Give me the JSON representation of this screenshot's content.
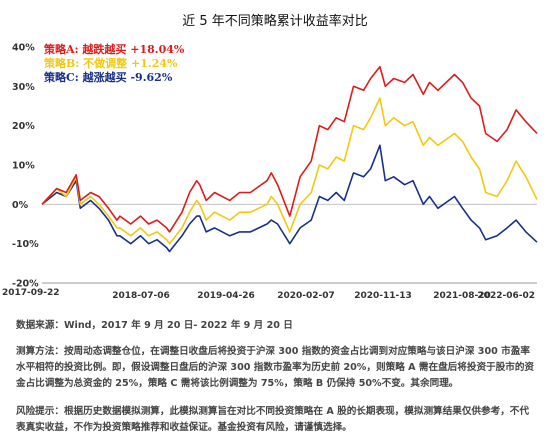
{
  "chart_data": {
    "type": "line",
    "title": "近 5 年不同策略累计收益率对比",
    "ylim": [
      -20,
      40
    ],
    "yticks": [
      -20,
      -10,
      0,
      10,
      20,
      30,
      40
    ],
    "ytick_labels": [
      "-20%",
      "-10%",
      "0%",
      "10%",
      "20%",
      "30%",
      "40%"
    ],
    "xlim": [
      "2017-09-22",
      "2022-09-20"
    ],
    "xtick_labels": [
      "2017-09-22",
      "2018-07-06",
      "2019-04-26",
      "2020-02-07",
      "2020-11-13",
      "2021-08-20",
      "2022-06-02"
    ],
    "grid": false,
    "legend_position": "top-left",
    "series": [
      {
        "name": "策略A: 越跌越买 +18.04%",
        "color": "#dd1c1c",
        "x": [
          "2017-09-22",
          "2017-11-15",
          "2017-12-20",
          "2018-01-26",
          "2018-02-10",
          "2018-03-20",
          "2018-04-20",
          "2018-05-25",
          "2018-06-25",
          "2018-07-06",
          "2018-08-15",
          "2018-09-20",
          "2018-10-20",
          "2018-11-20",
          "2018-12-25",
          "2019-01-05",
          "2019-02-20",
          "2019-03-20",
          "2019-04-15",
          "2019-04-26",
          "2019-05-20",
          "2019-06-20",
          "2019-08-15",
          "2019-09-20",
          "2019-10-30",
          "2019-12-30",
          "2020-01-15",
          "2020-02-07",
          "2020-03-23",
          "2020-04-30",
          "2020-06-10",
          "2020-07-10",
          "2020-08-10",
          "2020-09-10",
          "2020-10-10",
          "2020-11-13",
          "2020-12-20",
          "2021-01-15",
          "2021-02-18",
          "2021-03-10",
          "2021-04-10",
          "2021-05-20",
          "2021-06-20",
          "2021-07-28",
          "2021-08-20",
          "2021-09-20",
          "2021-11-20",
          "2021-12-20",
          "2022-01-20",
          "2022-02-20",
          "2022-03-15",
          "2022-04-26",
          "2022-06-02",
          "2022-07-05",
          "2022-08-10",
          "2022-09-20"
        ],
        "y": [
          0,
          4,
          3,
          7.5,
          1,
          3,
          2,
          -1,
          -4,
          -3,
          -5,
          -3,
          -5,
          -4,
          -6,
          -7,
          -2,
          3,
          6,
          5,
          1,
          3,
          1,
          3,
          3,
          6,
          8,
          5,
          -3,
          7,
          11,
          20,
          19,
          22,
          21,
          30,
          29,
          32,
          35,
          30,
          32,
          31,
          33,
          28,
          31,
          29,
          33,
          31,
          27,
          25,
          18,
          16,
          19,
          24,
          21,
          18.04
        ]
      },
      {
        "name": "策略B: 不做调整 +1.24%",
        "color": "#f2c811",
        "x": [
          "2017-09-22",
          "2017-11-15",
          "2017-12-20",
          "2018-01-26",
          "2018-02-10",
          "2018-03-20",
          "2018-04-20",
          "2018-05-25",
          "2018-06-25",
          "2018-07-06",
          "2018-08-15",
          "2018-09-20",
          "2018-10-20",
          "2018-11-20",
          "2018-12-25",
          "2019-01-05",
          "2019-02-20",
          "2019-03-20",
          "2019-04-15",
          "2019-04-26",
          "2019-05-20",
          "2019-06-20",
          "2019-08-15",
          "2019-09-20",
          "2019-10-30",
          "2019-12-30",
          "2020-01-15",
          "2020-02-07",
          "2020-03-23",
          "2020-04-30",
          "2020-06-10",
          "2020-07-10",
          "2020-08-10",
          "2020-09-10",
          "2020-10-10",
          "2020-11-13",
          "2020-12-20",
          "2021-01-15",
          "2021-02-18",
          "2021-03-10",
          "2021-04-10",
          "2021-05-20",
          "2021-06-20",
          "2021-07-28",
          "2021-08-20",
          "2021-09-20",
          "2021-11-20",
          "2021-12-20",
          "2022-01-20",
          "2022-02-20",
          "2022-03-15",
          "2022-04-26",
          "2022-06-02",
          "2022-07-05",
          "2022-08-10",
          "2022-09-20"
        ],
        "y": [
          0,
          4,
          2,
          7,
          0,
          2,
          0,
          -3,
          -6,
          -6,
          -8,
          -6,
          -8,
          -7,
          -9,
          -10,
          -6,
          -2,
          1,
          0,
          -4,
          -2,
          -4,
          -2,
          -2,
          0,
          2,
          0,
          -7,
          0,
          3,
          10,
          9,
          12,
          11,
          20,
          19,
          22,
          27,
          20,
          22,
          20,
          21,
          15,
          17,
          15,
          18,
          16,
          12,
          9,
          3,
          2,
          6,
          11,
          7,
          1.24
        ]
      },
      {
        "name": "策略C: 越涨越买 -9.62%",
        "color": "#18308a",
        "x": [
          "2017-09-22",
          "2017-11-15",
          "2017-12-20",
          "2018-01-26",
          "2018-02-10",
          "2018-03-20",
          "2018-04-20",
          "2018-05-25",
          "2018-06-25",
          "2018-07-06",
          "2018-08-15",
          "2018-09-20",
          "2018-10-20",
          "2018-11-20",
          "2018-12-25",
          "2019-01-05",
          "2019-02-20",
          "2019-03-20",
          "2019-04-15",
          "2019-04-26",
          "2019-05-20",
          "2019-06-20",
          "2019-08-15",
          "2019-09-20",
          "2019-10-30",
          "2019-12-30",
          "2020-01-15",
          "2020-02-07",
          "2020-03-23",
          "2020-04-30",
          "2020-06-10",
          "2020-07-10",
          "2020-08-10",
          "2020-09-10",
          "2020-10-10",
          "2020-11-13",
          "2020-12-20",
          "2021-01-15",
          "2021-02-18",
          "2021-03-10",
          "2021-04-10",
          "2021-05-20",
          "2021-06-20",
          "2021-07-28",
          "2021-08-20",
          "2021-09-20",
          "2021-11-20",
          "2021-12-20",
          "2022-01-20",
          "2022-02-20",
          "2022-03-15",
          "2022-04-26",
          "2022-06-02",
          "2022-07-05",
          "2022-08-10",
          "2022-09-20"
        ],
        "y": [
          0,
          3,
          2,
          6,
          -1,
          1,
          -1,
          -4,
          -8,
          -8,
          -10,
          -8,
          -10,
          -9,
          -11,
          -12,
          -8,
          -5,
          -3,
          -3,
          -7,
          -6,
          -8,
          -7,
          -7,
          -5,
          -4,
          -5,
          -10,
          -6,
          -4,
          2,
          1,
          3,
          1,
          8,
          7,
          9,
          15,
          6,
          7,
          5,
          6,
          0,
          2,
          -1,
          2,
          -1,
          -4,
          -6,
          -9,
          -8,
          -6,
          -4,
          -7,
          -9.62
        ]
      }
    ]
  },
  "notes": {
    "source": "数据来源：Wind，2017 年 9 月 20 日- 2022 年 9 月 20 日",
    "method": "测算方法：按周动态调整仓位，在调整日收盘后将投资于沪深 300 指数的资金占比调到对应策略与该日沪深 300 市盈率水平相符的投资比例。即，假设调整日盘后的沪深 300 指数市盈率为历史前 20%，则策略 A 需在盘后将投资于股市的资金占比调整为总资金的 25%，策略 C 需将该比例调整为 75%，策略 B 仍保持 50%不变。其余同理。",
    "risk": "风险提示：根据历史数据模拟测算，此模拟测算旨在对比不同投资策略在 A 股的长期表现，模拟测算结果仅供参考，不代表真实收益，不作为投资策略推荐和收益保证。基金投资有风险，请谨慎选择。"
  }
}
